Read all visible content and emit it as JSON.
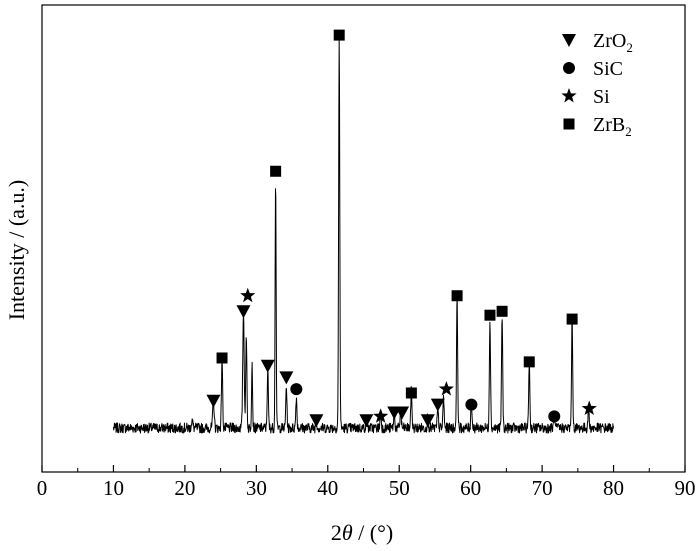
{
  "chart_data": {
    "type": "line",
    "xlabel_prefix": "2",
    "xlabel_theta": "θ",
    "xlabel_suffix": " / (°)",
    "ylabel": "Intensity / (a.u.)",
    "xlim": [
      0,
      90
    ],
    "xticks": [
      "0",
      "10",
      "20",
      "30",
      "40",
      "50",
      "60",
      "70",
      "80",
      "90"
    ],
    "y_ticks_shown": false,
    "grid": false,
    "legend_position": "top-right",
    "legend": [
      {
        "marker": "triangle-down",
        "base": "ZrO",
        "sub": "2",
        "name": "ZrO2"
      },
      {
        "marker": "circle",
        "base": "SiC",
        "sub": "",
        "name": "SiC"
      },
      {
        "marker": "star",
        "base": "Si",
        "sub": "",
        "name": "Si"
      },
      {
        "marker": "square",
        "base": "ZrB",
        "sub": "2",
        "name": "ZrB2"
      }
    ],
    "baseline_intensity": 3,
    "x_range_measured": [
      10,
      80
    ],
    "peaks": [
      {
        "x": 21.0,
        "y": 2,
        "w": 0.1
      },
      {
        "x": 24.0,
        "y": 7,
        "w": 0.1
      },
      {
        "x": 25.2,
        "y": 18,
        "w": 0.08
      },
      {
        "x": 28.2,
        "y": 30,
        "w": 0.1
      },
      {
        "x": 28.6,
        "y": 24,
        "w": 0.08
      },
      {
        "x": 29.4,
        "y": 17,
        "w": 0.07
      },
      {
        "x": 31.6,
        "y": 15,
        "w": 0.08
      },
      {
        "x": 32.7,
        "y": 65,
        "w": 0.07
      },
      {
        "x": 34.2,
        "y": 11,
        "w": 0.08
      },
      {
        "x": 35.6,
        "y": 8,
        "w": 0.08
      },
      {
        "x": 38.4,
        "y": 2,
        "w": 0.08
      },
      {
        "x": 41.6,
        "y": 100,
        "w": 0.08
      },
      {
        "x": 45.4,
        "y": 2,
        "w": 0.08
      },
      {
        "x": 47.4,
        "y": 4,
        "w": 0.08
      },
      {
        "x": 49.3,
        "y": 4,
        "w": 0.08
      },
      {
        "x": 50.2,
        "y": 5,
        "w": 0.08
      },
      {
        "x": 51.7,
        "y": 10,
        "w": 0.08
      },
      {
        "x": 54.0,
        "y": 3,
        "w": 0.08
      },
      {
        "x": 55.4,
        "y": 5,
        "w": 0.08
      },
      {
        "x": 56.2,
        "y": 8,
        "w": 0.08
      },
      {
        "x": 58.1,
        "y": 33,
        "w": 0.08
      },
      {
        "x": 60.1,
        "y": 7,
        "w": 0.08
      },
      {
        "x": 62.7,
        "y": 28,
        "w": 0.08
      },
      {
        "x": 64.4,
        "y": 29,
        "w": 0.08
      },
      {
        "x": 68.2,
        "y": 17,
        "w": 0.08
      },
      {
        "x": 71.7,
        "y": 3,
        "w": 0.08
      },
      {
        "x": 74.2,
        "y": 28,
        "w": 0.08
      },
      {
        "x": 76.5,
        "y": 5,
        "w": 0.08
      }
    ],
    "phase_markers": [
      {
        "phase": "ZrO2",
        "marker": "triangle-down",
        "x": 24.0,
        "y": 10
      },
      {
        "phase": "ZrB2",
        "marker": "square",
        "x": 25.2,
        "y": 21
      },
      {
        "phase": "ZrO2",
        "marker": "triangle-down",
        "x": 28.2,
        "y": 33
      },
      {
        "phase": "Si",
        "marker": "star",
        "x": 28.8,
        "y": 37
      },
      {
        "phase": "ZrO2",
        "marker": "triangle-down",
        "x": 31.6,
        "y": 19
      },
      {
        "phase": "ZrB2",
        "marker": "square",
        "x": 32.7,
        "y": 69
      },
      {
        "phase": "ZrO2",
        "marker": "triangle-down",
        "x": 34.2,
        "y": 16
      },
      {
        "phase": "SiC",
        "marker": "circle",
        "x": 35.6,
        "y": 13
      },
      {
        "phase": "ZrO2",
        "marker": "triangle-down",
        "x": 38.4,
        "y": 5
      },
      {
        "phase": "ZrB2",
        "marker": "square",
        "x": 41.6,
        "y": 104
      },
      {
        "phase": "ZrO2",
        "marker": "triangle-down",
        "x": 45.4,
        "y": 5
      },
      {
        "phase": "Si",
        "marker": "star",
        "x": 47.4,
        "y": 6
      },
      {
        "phase": "ZrO2",
        "marker": "triangle-down",
        "x": 49.3,
        "y": 7
      },
      {
        "phase": "ZrO2",
        "marker": "triangle-down",
        "x": 50.4,
        "y": 7
      },
      {
        "phase": "ZrB2",
        "marker": "square",
        "x": 51.7,
        "y": 12
      },
      {
        "phase": "ZrO2",
        "marker": "triangle-down",
        "x": 54.0,
        "y": 5
      },
      {
        "phase": "ZrO2",
        "marker": "triangle-down",
        "x": 55.4,
        "y": 9
      },
      {
        "phase": "Si",
        "marker": "star",
        "x": 56.6,
        "y": 13
      },
      {
        "phase": "ZrB2",
        "marker": "square",
        "x": 58.1,
        "y": 37
      },
      {
        "phase": "SiC",
        "marker": "circle",
        "x": 60.1,
        "y": 9
      },
      {
        "phase": "ZrB2",
        "marker": "square",
        "x": 62.7,
        "y": 32
      },
      {
        "phase": "ZrB2",
        "marker": "square",
        "x": 64.4,
        "y": 33
      },
      {
        "phase": "ZrB2",
        "marker": "square",
        "x": 68.2,
        "y": 20
      },
      {
        "phase": "SiC",
        "marker": "circle",
        "x": 71.7,
        "y": 6
      },
      {
        "phase": "ZrB2",
        "marker": "square",
        "x": 74.2,
        "y": 31
      },
      {
        "phase": "Si",
        "marker": "star",
        "x": 76.6,
        "y": 8
      }
    ]
  }
}
